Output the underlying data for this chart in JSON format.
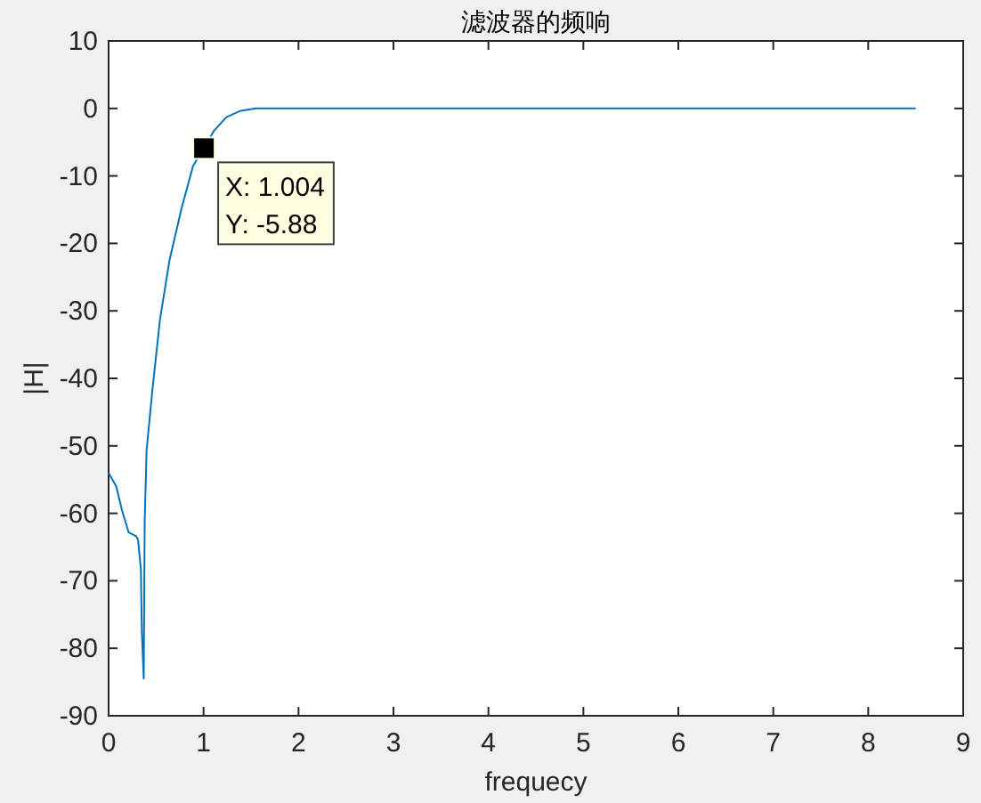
{
  "chart_data": {
    "type": "line",
    "title": "滤波器的频响",
    "xlabel": "frequecy",
    "ylabel": "|H|",
    "xlim": [
      0,
      9
    ],
    "xticks": [
      0,
      1,
      2,
      3,
      4,
      5,
      6,
      7,
      8,
      9
    ],
    "ylim": [
      -90,
      10
    ],
    "yticks": [
      -90,
      -80,
      -70,
      -60,
      -50,
      -40,
      -30,
      -20,
      -10,
      0,
      10
    ],
    "grid": false,
    "series": [
      {
        "color": "#0072bd",
        "x": [
          0,
          0.08,
          0.14,
          0.21,
          0.29,
          0.31,
          0.34,
          0.35,
          0.37,
          0.38,
          0.4,
          0.46,
          0.54,
          0.64,
          0.77,
          0.89,
          1.004,
          1.11,
          1.24,
          1.39,
          1.55,
          8.5
        ],
        "values": [
          -54,
          -56,
          -59.5,
          -62.8,
          -63.4,
          -63.9,
          -68.3,
          -77.5,
          -84.5,
          -61.2,
          -50.7,
          -41.9,
          -31.4,
          -22.6,
          -14.7,
          -8.5,
          -5.88,
          -3.3,
          -1.3,
          -0.35,
          0,
          0
        ]
      }
    ],
    "annotations": [
      {
        "text": "X: 1.004\nY: -5.88",
        "x": 1.004,
        "y": -5.88
      }
    ]
  }
}
